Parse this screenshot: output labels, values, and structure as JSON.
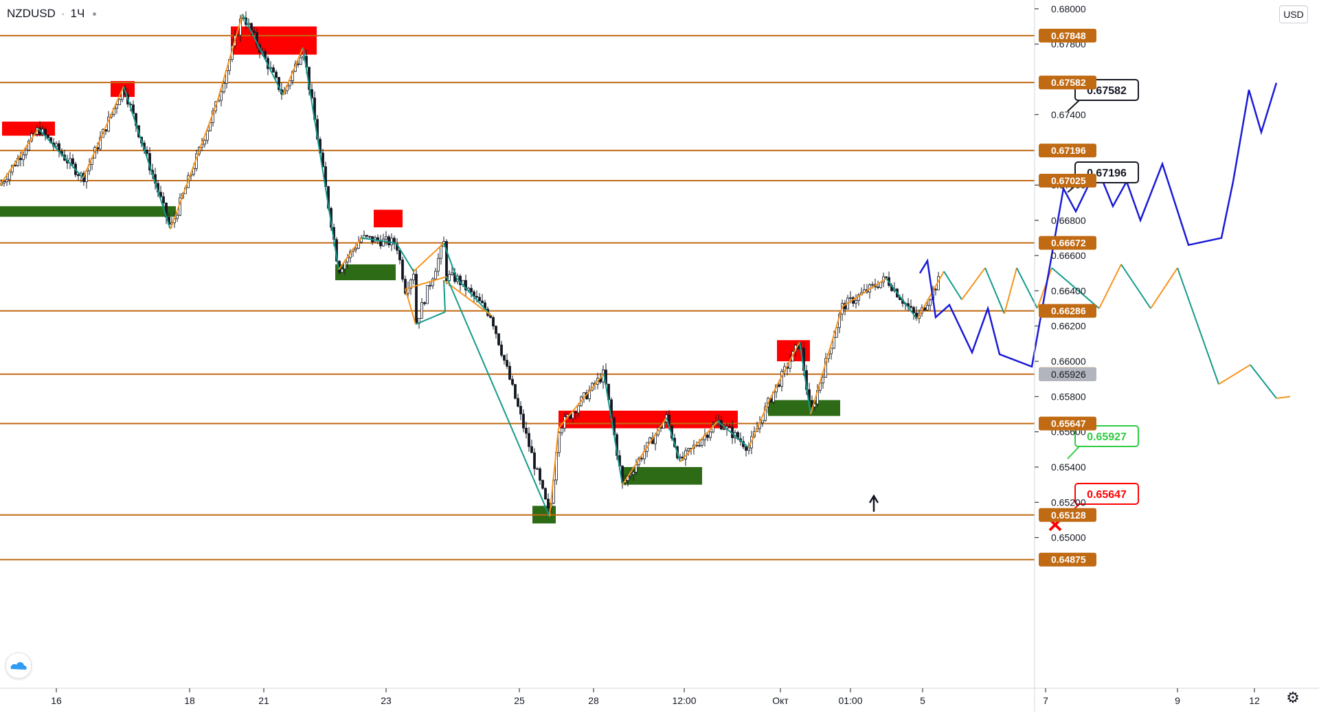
{
  "symbol": {
    "name": "NZDUSD",
    "separator": "·",
    "interval": "1Ч",
    "status_dot_color": "#9598a1"
  },
  "currency_label": "USD",
  "colors": {
    "level": "#c06a13",
    "level_label_bg": "#c06a13",
    "candle": "#131722",
    "zigzag_up": "#f7931a",
    "zigzag_down": "#129a8a",
    "forecast": "#1a1ad6",
    "supply_zone": "#ff0000",
    "demand_zone": "#2e6b16",
    "callout_green": "#2ecc40",
    "callout_red": "#ff0000",
    "current_price_bg": "#b2b5be"
  },
  "icons": {
    "logo": "tradingview-cloud-icon",
    "settings": "gear-icon",
    "arrow": "up-arrow-icon",
    "cross": "red-x-icon"
  },
  "chart_data": {
    "type": "candlestick",
    "y_axis": {
      "min": 0.6487,
      "max": 0.6805,
      "ticks": [
        "0.68000",
        "0.67800",
        "0.67400",
        "0.67000",
        "0.66800",
        "0.66600",
        "0.66400",
        "0.66200",
        "0.66000",
        "0.65800",
        "0.65600",
        "0.65400",
        "0.65200",
        "0.65000"
      ]
    },
    "x_axis": {
      "labels": [
        "16",
        "18",
        "21",
        "23",
        "25",
        "28",
        "12:00",
        "Окт",
        "01:00",
        "5",
        "7",
        "9",
        "12"
      ]
    },
    "levels": [
      {
        "price": "0.67848"
      },
      {
        "price": "0.67582"
      },
      {
        "price": "0.67196"
      },
      {
        "price": "0.67025"
      },
      {
        "price": "0.66672"
      },
      {
        "price": "0.66286"
      },
      {
        "price": "0.65927"
      },
      {
        "price": "0.65647"
      },
      {
        "price": "0.65128"
      },
      {
        "price": "0.64875"
      }
    ],
    "current_price": "0.65926",
    "zones": [
      {
        "kind": "supply",
        "t0": 3,
        "t1": 80,
        "p0": 0.6728,
        "p1": 0.6736
      },
      {
        "kind": "supply",
        "t0": 161,
        "t1": 196,
        "p0": 0.675,
        "p1": 0.6759
      },
      {
        "kind": "supply",
        "t0": 336,
        "t1": 461,
        "p0": 0.6774,
        "p1": 0.679
      },
      {
        "kind": "supply",
        "t0": 544,
        "t1": 586,
        "p0": 0.6676,
        "p1": 0.6686
      },
      {
        "kind": "supply",
        "t0": 813,
        "t1": 1074,
        "p0": 0.6562,
        "p1": 0.6572
      },
      {
        "kind": "supply",
        "t0": 1131,
        "t1": 1179,
        "p0": 0.66,
        "p1": 0.6612
      },
      {
        "kind": "demand",
        "t0": 0,
        "t1": 256,
        "p0": 0.6682,
        "p1": 0.6688
      },
      {
        "kind": "demand",
        "t0": 488,
        "t1": 576,
        "p0": 0.6646,
        "p1": 0.6655
      },
      {
        "kind": "demand",
        "t0": 775,
        "t1": 809,
        "p0": 0.6508,
        "p1": 0.6518
      },
      {
        "kind": "demand",
        "t0": 906,
        "t1": 1022,
        "p0": 0.653,
        "p1": 0.654
      },
      {
        "kind": "demand",
        "t0": 1118,
        "t1": 1223,
        "p0": 0.6569,
        "p1": 0.6578
      }
    ],
    "zigzag": [
      [
        0,
        0.67
      ],
      [
        56,
        0.6732
      ],
      [
        121,
        0.6704
      ],
      [
        180,
        0.6756
      ],
      [
        248,
        0.6675
      ],
      [
        316,
        0.6747
      ],
      [
        353,
        0.6797
      ],
      [
        412,
        0.6751
      ],
      [
        441,
        0.6778
      ],
      [
        493,
        0.6652
      ],
      [
        526,
        0.667
      ],
      [
        577,
        0.6667
      ],
      [
        602,
        0.6651
      ],
      [
        646,
        0.6667
      ],
      [
        665,
        0.6647
      ],
      [
        715,
        0.6626
      ],
      [
        646,
        0.6646
      ],
      [
        648,
        0.6628
      ],
      [
        605,
        0.6621
      ],
      [
        590,
        0.6641
      ],
      [
        650,
        0.6648
      ],
      [
        800,
        0.6512
      ],
      [
        813,
        0.6562
      ],
      [
        879,
        0.6593
      ],
      [
        906,
        0.653
      ],
      [
        970,
        0.6568
      ],
      [
        990,
        0.6543
      ],
      [
        1045,
        0.6566
      ],
      [
        1090,
        0.6551
      ],
      [
        1120,
        0.6578
      ],
      [
        1164,
        0.6611
      ],
      [
        1180,
        0.657
      ],
      [
        1226,
        0.6631
      ],
      [
        1290,
        0.6647
      ],
      [
        1335,
        0.6624
      ],
      [
        1374,
        0.6651
      ],
      [
        1400,
        0.6635
      ],
      [
        1434,
        0.6653
      ],
      [
        1462,
        0.6627
      ],
      [
        1480,
        0.6653
      ],
      [
        1510,
        0.663
      ],
      [
        1531,
        0.6653
      ],
      [
        1600,
        0.663
      ],
      [
        1632,
        0.6655
      ],
      [
        1675,
        0.663
      ],
      [
        1714,
        0.6653
      ],
      [
        1774,
        0.6587
      ],
      [
        1820,
        0.6598
      ],
      [
        1858,
        0.6579
      ],
      [
        1878,
        0.658
      ]
    ],
    "forecast_path": [
      [
        1339,
        0.665
      ],
      [
        1350,
        0.6657
      ],
      [
        1362,
        0.6625
      ],
      [
        1382,
        0.6632
      ],
      [
        1415,
        0.6605
      ],
      [
        1438,
        0.663
      ],
      [
        1455,
        0.6604
      ],
      [
        1502,
        0.6597
      ],
      [
        1530,
        0.6658
      ],
      [
        1548,
        0.6698
      ],
      [
        1566,
        0.6685
      ],
      [
        1597,
        0.671
      ],
      [
        1620,
        0.6688
      ],
      [
        1640,
        0.6702
      ],
      [
        1660,
        0.668
      ],
      [
        1692,
        0.6712
      ],
      [
        1730,
        0.6666
      ],
      [
        1778,
        0.667
      ],
      [
        1795,
        0.6702
      ],
      [
        1818,
        0.6754
      ],
      [
        1836,
        0.673
      ],
      [
        1858,
        0.6758
      ]
    ],
    "annotations": [
      {
        "kind": "callout",
        "text": "0.67582",
        "style": "black"
      },
      {
        "kind": "callout",
        "text": "0.67196",
        "style": "black"
      },
      {
        "kind": "callout",
        "text": "0.65927",
        "style": "green"
      },
      {
        "kind": "callout",
        "text": "0.65647",
        "style": "red"
      }
    ]
  }
}
